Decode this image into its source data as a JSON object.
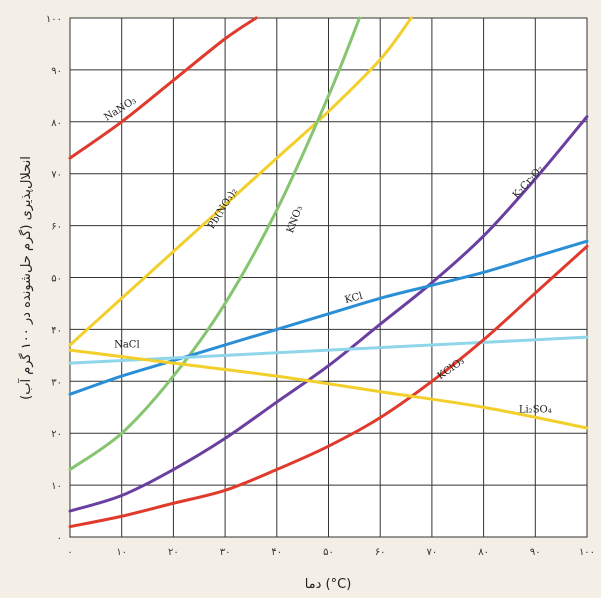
{
  "chart_data": {
    "type": "line",
    "title": "",
    "xlabel": "دما (°C)",
    "ylabel": "انحلال‌پذیری (گرم حل‌شونده در ۱۰۰ گرم آب)",
    "xlim": [
      0,
      100
    ],
    "ylim": [
      0,
      100
    ],
    "x_ticks": [
      "۰",
      "۱۰",
      "۲۰",
      "۳۰",
      "۴۰",
      "۵۰",
      "۶۰",
      "۷۰",
      "۸۰",
      "۹۰",
      "۱۰۰"
    ],
    "y_ticks": [
      "۰",
      "۱۰",
      "۲۰",
      "۳۰",
      "۴۰",
      "۵۰",
      "۶۰",
      "۷۰",
      "۸۰",
      "۹۰",
      "۱۰۰"
    ],
    "grid": true,
    "series": [
      {
        "name": "NaNO₃",
        "color": "#e03a2c",
        "x": [
          0,
          10,
          20,
          30,
          36
        ],
        "y": [
          73,
          80,
          88,
          96,
          100
        ]
      },
      {
        "name": "Pb(NO₃)₂",
        "color": "#f2cf2a",
        "x": [
          0,
          10,
          20,
          30,
          40,
          50,
          60,
          66
        ],
        "y": [
          37,
          46,
          55,
          64,
          73,
          82,
          92,
          100
        ]
      },
      {
        "name": "KNO₃",
        "color": "#86c56f",
        "x": [
          0,
          10,
          20,
          30,
          40,
          50,
          56
        ],
        "y": [
          13,
          20,
          31,
          45,
          63,
          85,
          100
        ]
      },
      {
        "name": "K₂Cr₂O₇",
        "color": "#6b3fa0",
        "x": [
          0,
          10,
          20,
          30,
          40,
          50,
          60,
          70,
          80,
          90,
          100
        ],
        "y": [
          5,
          8,
          13,
          19,
          26,
          33,
          41,
          49,
          58,
          69,
          81
        ]
      },
      {
        "name": "KCl",
        "color": "#2a8fd6",
        "x": [
          0,
          10,
          20,
          30,
          40,
          50,
          60,
          70,
          80,
          90,
          100
        ],
        "y": [
          27.5,
          31,
          34,
          37,
          40,
          43,
          46,
          48.5,
          51,
          54,
          57
        ]
      },
      {
        "name": "NaCl",
        "color": "#8fd6ea",
        "x": [
          0,
          20,
          40,
          60,
          80,
          100
        ],
        "y": [
          33.5,
          34.5,
          35.5,
          36.5,
          37.5,
          38.5
        ]
      },
      {
        "name": "KClO₃",
        "color": "#e03a2c",
        "x": [
          0,
          10,
          20,
          30,
          40,
          50,
          60,
          70,
          80,
          90,
          100
        ],
        "y": [
          2,
          4,
          6.5,
          9,
          13,
          17.5,
          23,
          30,
          38,
          47,
          56
        ]
      },
      {
        "name": "Li₂SO₄",
        "color": "#f2cf2a",
        "x": [
          0,
          20,
          40,
          60,
          80,
          100
        ],
        "y": [
          36,
          33.5,
          31,
          28,
          25,
          21
        ]
      }
    ]
  }
}
